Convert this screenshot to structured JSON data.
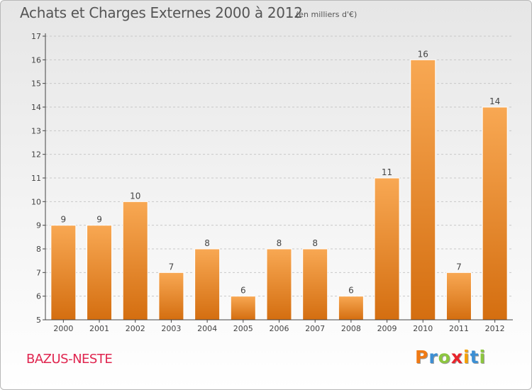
{
  "header": {
    "title": "Achats et Charges Externes 2000 à 2012",
    "unit": "(en milliers d'€)"
  },
  "footer": {
    "commune": "BAZUS-NESTE",
    "logo": {
      "text": "Proxiti",
      "letter_colors": [
        "#f07a14",
        "#3c8fd4",
        "#8dc63f",
        "#e8242c",
        "#f5a000",
        "#3c8fd4",
        "#8dc63f"
      ]
    }
  },
  "colors": {
    "bar": "#f28d2e",
    "bar_light": "#f8a853",
    "bar_dark": "#d46e10",
    "axis": "#444444",
    "grid": "#c8c8c8",
    "commune": "#e0254f"
  },
  "chart_data": {
    "type": "bar",
    "categories": [
      "2000",
      "2001",
      "2002",
      "2003",
      "2004",
      "2005",
      "2006",
      "2007",
      "2008",
      "2009",
      "2010",
      "2011",
      "2012"
    ],
    "values": [
      9,
      9,
      10,
      7,
      8,
      6,
      8,
      8,
      6,
      11,
      16,
      7,
      14
    ],
    "title": "Achats et Charges Externes 2000 à 2012",
    "subtitle": "(en milliers d'€)",
    "xlabel": "",
    "ylabel": "",
    "ylim": [
      5,
      17
    ],
    "yticks": [
      5,
      6,
      7,
      8,
      9,
      10,
      11,
      12,
      13,
      14,
      15,
      16,
      17
    ],
    "grid": "horizontal dashed",
    "data_labels": true
  }
}
